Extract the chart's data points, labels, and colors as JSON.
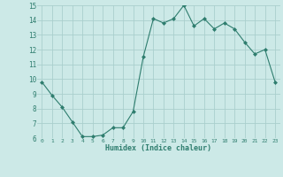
{
  "x": [
    0,
    1,
    2,
    3,
    4,
    5,
    6,
    7,
    8,
    9,
    10,
    11,
    12,
    13,
    14,
    15,
    16,
    17,
    18,
    19,
    20,
    21,
    22,
    23
  ],
  "y": [
    9.8,
    8.9,
    8.1,
    7.1,
    6.1,
    6.1,
    6.2,
    6.7,
    6.7,
    7.8,
    11.5,
    14.1,
    13.8,
    14.1,
    15.0,
    13.6,
    14.1,
    13.4,
    13.8,
    13.4,
    12.5,
    11.7,
    12.0,
    9.8
  ],
  "xlabel": "Humidex (Indice chaleur)",
  "ylim": [
    6,
    15
  ],
  "xlim": [
    -0.5,
    23.5
  ],
  "yticks": [
    6,
    7,
    8,
    9,
    10,
    11,
    12,
    13,
    14,
    15
  ],
  "xticks": [
    0,
    1,
    2,
    3,
    4,
    5,
    6,
    7,
    8,
    9,
    10,
    11,
    12,
    13,
    14,
    15,
    16,
    17,
    18,
    19,
    20,
    21,
    22,
    23
  ],
  "line_color": "#2e7d6e",
  "marker_color": "#2e7d6e",
  "bg_color": "#cce9e7",
  "grid_color": "#aacfcd",
  "tick_color": "#2e7d6e",
  "label_color": "#2e7d6e",
  "axis_bg": "#cce9e7"
}
